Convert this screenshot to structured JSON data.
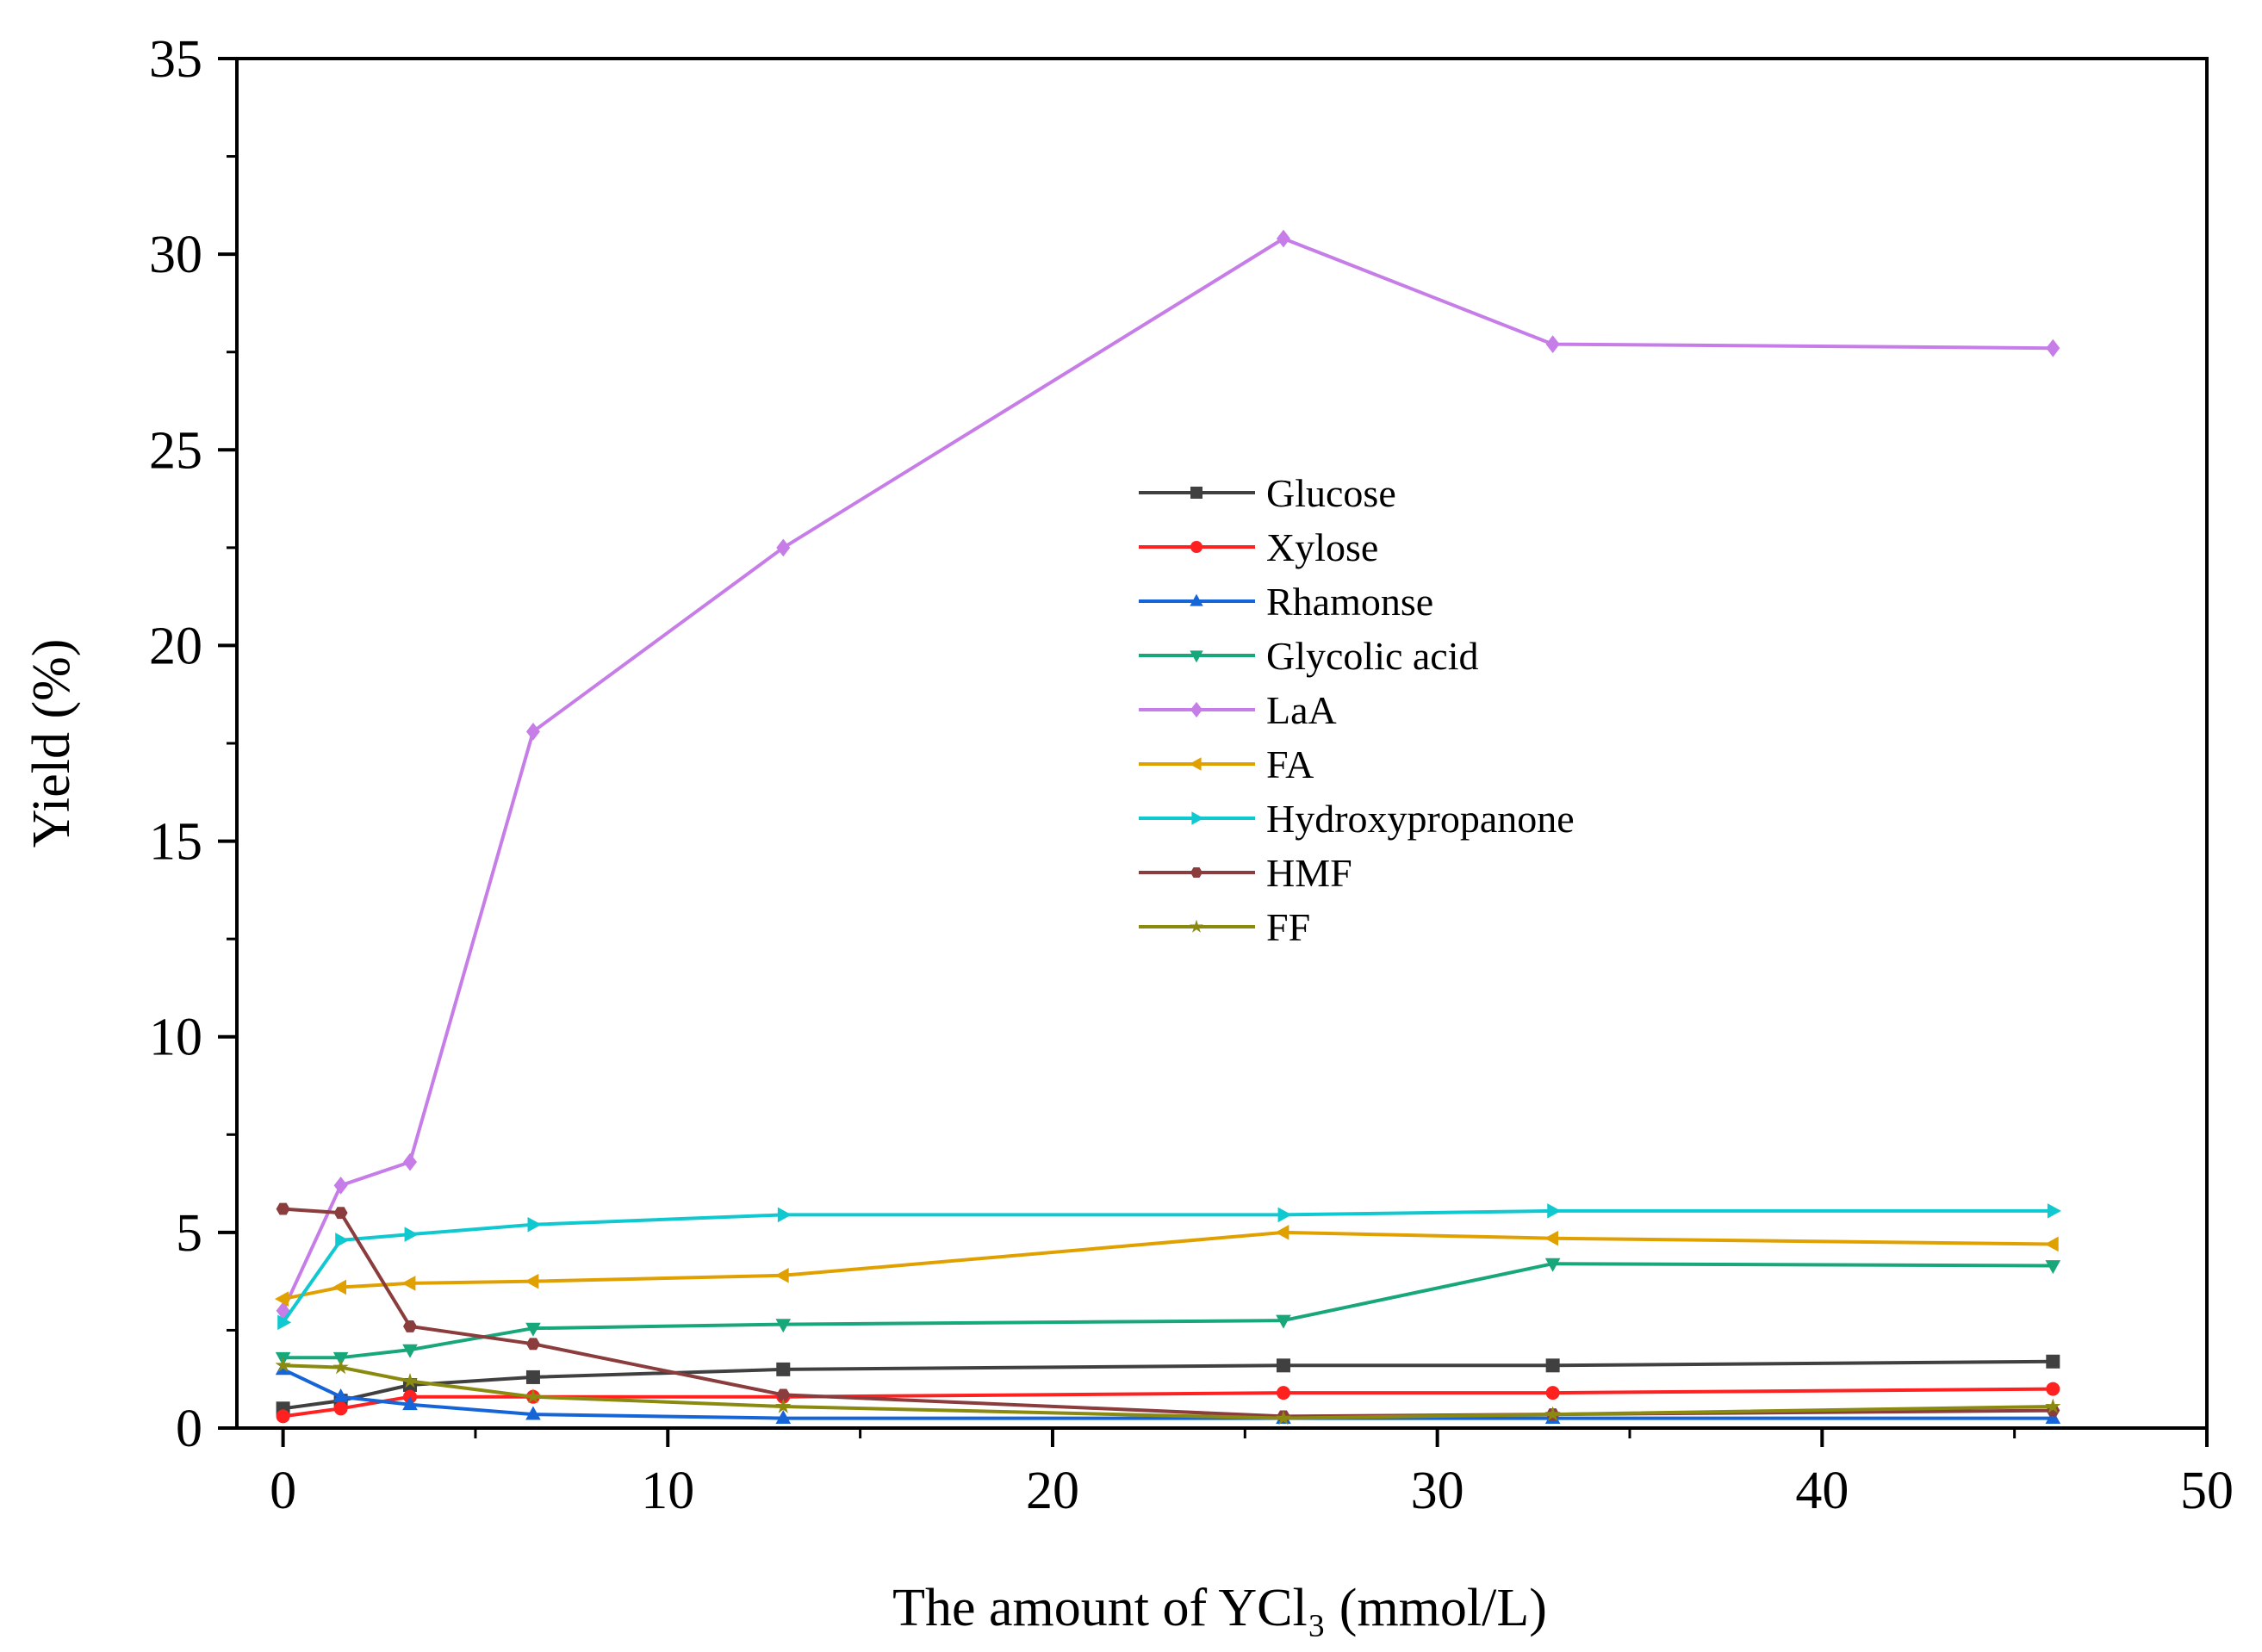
{
  "chart_data": {
    "type": "line",
    "title": "",
    "xlabel": "The amount of YCl₃ (mmol/L)",
    "ylabel": "Yield (%)",
    "xlim": [
      -1.2,
      50
    ],
    "ylim": [
      0,
      35
    ],
    "xticks": [
      0,
      10,
      20,
      30,
      40,
      50
    ],
    "yticks": [
      0,
      5,
      10,
      15,
      20,
      25,
      30,
      35
    ],
    "x": [
      0,
      1.5,
      3.3,
      6.5,
      13,
      26,
      33,
      46
    ],
    "legend_position": "center-right",
    "series": [
      {
        "name": "Glucose",
        "color": "#404040",
        "marker": "square",
        "values": [
          0.5,
          0.7,
          1.1,
          1.3,
          1.5,
          1.6,
          1.6,
          1.7
        ]
      },
      {
        "name": "Xylose",
        "color": "#ff2020",
        "marker": "circle",
        "values": [
          0.3,
          0.5,
          0.8,
          0.8,
          0.8,
          0.9,
          0.9,
          1.0
        ]
      },
      {
        "name": "Rhamonse",
        "color": "#1565d8",
        "marker": "triangle-up",
        "values": [
          1.5,
          0.8,
          0.6,
          0.35,
          0.25,
          0.25,
          0.25,
          0.25
        ]
      },
      {
        "name": "Glycolic acid",
        "color": "#17a77a",
        "marker": "triangle-down",
        "values": [
          1.8,
          1.8,
          2.0,
          2.55,
          2.65,
          2.75,
          4.2,
          4.15
        ]
      },
      {
        "name": "LaA",
        "color": "#c77de8",
        "marker": "diamond",
        "values": [
          3.0,
          6.2,
          6.8,
          17.8,
          22.5,
          30.4,
          27.7,
          27.6
        ]
      },
      {
        "name": "FA",
        "color": "#e0a000",
        "marker": "triangle-left",
        "values": [
          3.3,
          3.6,
          3.7,
          3.75,
          3.9,
          5.0,
          4.85,
          4.7
        ]
      },
      {
        "name": "Hydroxypropanone",
        "color": "#10c8d0",
        "marker": "triangle-right",
        "values": [
          2.7,
          4.8,
          4.95,
          5.2,
          5.45,
          5.45,
          5.55,
          5.55
        ]
      },
      {
        "name": "HMF",
        "color": "#8b3c3c",
        "marker": "hexagon",
        "values": [
          5.6,
          5.5,
          2.6,
          2.15,
          0.85,
          0.3,
          0.35,
          0.45
        ]
      },
      {
        "name": "FF",
        "color": "#8a8a10",
        "marker": "star",
        "values": [
          1.6,
          1.55,
          1.2,
          0.8,
          0.55,
          0.25,
          0.35,
          0.55
        ]
      }
    ]
  }
}
